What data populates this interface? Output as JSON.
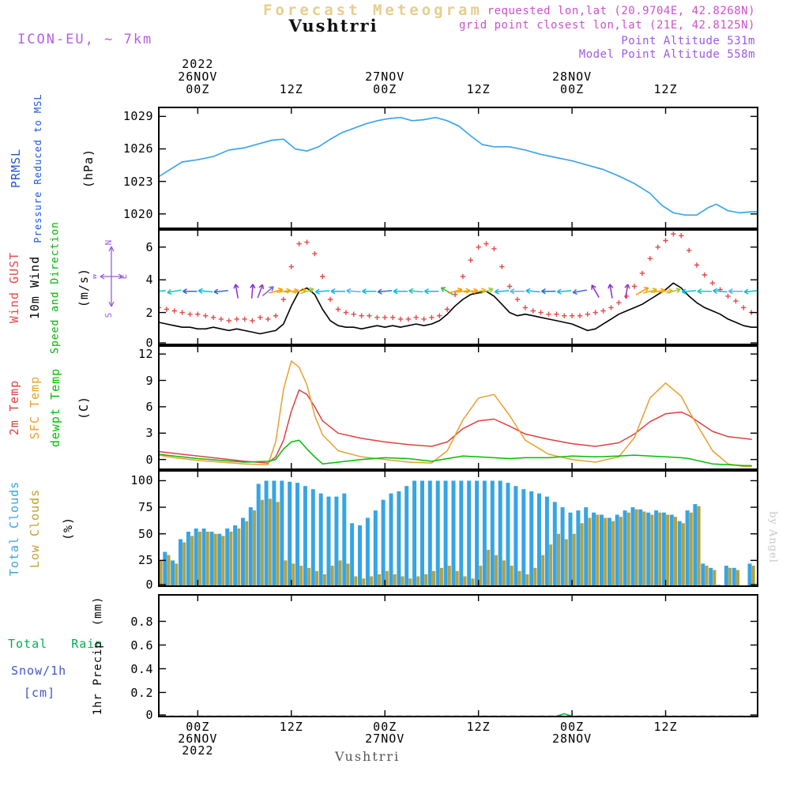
{
  "header": {
    "title": "Forecast Meteogram",
    "station": "Vushtrri",
    "model": "ICON-EU, ~ 7km",
    "requested": "requested lon,lat (20.9704E, 42.8268N)",
    "grid_point": "grid point closest lon,lat (21E, 42.8125N)",
    "point_altitude": "Point Altitude 531m",
    "model_point_altitude": "Model Point Altitude 558m"
  },
  "footer": {
    "station": "Vushtrri"
  },
  "watermark": "by Angel",
  "compass": {
    "n": "N",
    "e": "E",
    "s": "S",
    "w": "W"
  },
  "time_axis": {
    "hours_range": [
      -5.1,
      71.9
    ],
    "ticks": [
      {
        "h": 0,
        "z": "00Z",
        "date": "26NOV",
        "year": "2022"
      },
      {
        "h": 12,
        "z": "12Z"
      },
      {
        "h": 24,
        "z": "00Z",
        "date": "27NOV"
      },
      {
        "h": 36,
        "z": "12Z"
      },
      {
        "h": 48,
        "z": "00Z",
        "date": "28NOV"
      },
      {
        "h": 60,
        "z": "12Z"
      }
    ]
  },
  "panel_labels": {
    "pressure": [
      {
        "t": "PRMSL",
        "c": "#1b57d8"
      },
      {
        "t": "Pressure Reduced to MSL",
        "c": "#1b57d8"
      },
      {
        "t": "(hPa)",
        "c": "#000000"
      }
    ],
    "wind": [
      {
        "t": "Wind GUST",
        "c": "#e84848"
      },
      {
        "t": "10m Wind",
        "c": "#000000"
      },
      {
        "t": "Speed and Direction",
        "c": "#00b000"
      },
      {
        "t": "(m/s)",
        "c": "#000000"
      }
    ],
    "temperature": [
      {
        "t": "2m Temp",
        "c": "#e04040"
      },
      {
        "t": "SFC Temp",
        "c": "#e8a030"
      },
      {
        "t": "dewpt Temp",
        "c": "#00c000"
      },
      {
        "t": "(C)",
        "c": "#000000"
      }
    ],
    "clouds": [
      {
        "t": "Total Clouds",
        "c": "#35a5e5"
      },
      {
        "t": "Low Clouds",
        "c": "#c0a030"
      },
      {
        "t": "(%)",
        "c": "#000000"
      }
    ],
    "precip_side": [
      {
        "t": "Total   Rain",
        "c": "#00b050"
      },
      {
        "t": "Snow/1h",
        "c": "#4055cc"
      },
      {
        "t": "[cm]",
        "c": "#4055cc"
      }
    ],
    "precip_rot": [
      {
        "t": "1hr Precip  (mm)",
        "c": "#000000"
      }
    ]
  },
  "chart_data": [
    {
      "id": "pressure",
      "type": "line",
      "name": "Pressure Reduced to MSL (hPa)",
      "ylim": [
        1018.6,
        1029.9
      ],
      "yticks": [
        1020,
        1023,
        1026,
        1029
      ],
      "series": [
        {
          "name": "PRMSL",
          "color": "#3da5e8",
          "width": 1.7,
          "x": [
            -5.1,
            -4,
            -2,
            0,
            2,
            4,
            6,
            8,
            9.5,
            11,
            12.5,
            14,
            15.5,
            17,
            18.5,
            20,
            21.5,
            23,
            24.5,
            26,
            27.5,
            29,
            30.5,
            32,
            33.5,
            35,
            36.5,
            38,
            40,
            42,
            44,
            46,
            48,
            50,
            52,
            54,
            56,
            58,
            59.5,
            61,
            62.5,
            64,
            65.5,
            66.5,
            68,
            69.5,
            71,
            71.9
          ],
          "y": [
            1023.4,
            1023.9,
            1024.8,
            1025.0,
            1025.3,
            1025.9,
            1026.1,
            1026.5,
            1026.8,
            1026.9,
            1026.0,
            1025.8,
            1026.2,
            1026.9,
            1027.5,
            1027.9,
            1028.3,
            1028.6,
            1028.8,
            1028.9,
            1028.6,
            1028.7,
            1028.9,
            1028.6,
            1028.1,
            1027.2,
            1026.4,
            1026.2,
            1026.2,
            1025.9,
            1025.5,
            1025.2,
            1024.9,
            1024.5,
            1024.1,
            1023.5,
            1022.8,
            1021.9,
            1020.8,
            1020.1,
            1019.9,
            1019.9,
            1020.6,
            1020.9,
            1020.3,
            1020.1,
            1020.2,
            1020.2
          ]
        }
      ]
    },
    {
      "id": "wind",
      "type": "mixed",
      "name": "10m Wind Speed, Gust (m/s) and Direction",
      "ylim": [
        0,
        7.1
      ],
      "yticks": [
        0,
        2,
        4,
        6
      ],
      "gust": {
        "name": "Wind GUST",
        "color": "#e84848",
        "x0": -5,
        "dx": 1,
        "y": [
          2.3,
          2.2,
          2.1,
          2.0,
          1.9,
          1.9,
          1.8,
          1.7,
          1.6,
          1.5,
          1.6,
          1.6,
          1.5,
          1.7,
          1.6,
          1.8,
          2.8,
          4.8,
          6.2,
          6.3,
          5.6,
          4.2,
          2.8,
          2.2,
          2.0,
          1.9,
          1.8,
          1.8,
          1.7,
          1.7,
          1.7,
          1.6,
          1.6,
          1.7,
          1.6,
          1.7,
          1.8,
          2.2,
          3.1,
          4.2,
          5.2,
          6.0,
          6.2,
          5.9,
          4.8,
          3.6,
          2.8,
          2.3,
          2.1,
          2.0,
          1.9,
          1.9,
          1.8,
          1.8,
          1.8,
          1.9,
          2.0,
          2.1,
          2.3,
          2.6,
          3.0,
          3.6,
          4.4,
          5.3,
          6.0,
          6.4,
          6.8,
          6.7,
          5.8,
          4.9,
          4.3,
          3.8,
          3.4,
          3.0,
          2.7,
          2.3,
          2.0,
          1.9
        ]
      },
      "speed": {
        "name": "10m Wind",
        "color": "#000000",
        "x0": -5,
        "dx": 1,
        "y": [
          1.4,
          1.3,
          1.2,
          1.1,
          1.1,
          1.0,
          1.0,
          1.1,
          1.0,
          0.9,
          1.0,
          0.9,
          0.8,
          0.7,
          0.8,
          0.9,
          1.3,
          2.4,
          3.3,
          3.5,
          3.1,
          2.2,
          1.5,
          1.2,
          1.1,
          1.1,
          1.0,
          1.1,
          1.2,
          1.1,
          1.2,
          1.1,
          1.2,
          1.3,
          1.2,
          1.3,
          1.5,
          1.9,
          2.4,
          2.8,
          3.1,
          3.2,
          3.3,
          3.0,
          2.5,
          2.0,
          1.8,
          1.9,
          1.8,
          1.7,
          1.6,
          1.5,
          1.4,
          1.3,
          1.1,
          0.9,
          1.0,
          1.3,
          1.6,
          1.9,
          2.1,
          2.3,
          2.5,
          2.8,
          3.1,
          3.4,
          3.8,
          3.5,
          3.0,
          2.6,
          2.3,
          2.1,
          1.9,
          1.6,
          1.4,
          1.2,
          1.1,
          1.1
        ]
      },
      "barbs": {
        "name": "Wind Direction",
        "y_value": 3.3,
        "items": [
          [
            -5,
            185,
            "#00bfe8"
          ],
          [
            -3,
            190,
            "#20c8a8"
          ],
          [
            -1,
            180,
            "#2e6bd8"
          ],
          [
            1,
            175,
            "#00bfe8"
          ],
          [
            3,
            185,
            "#2e6bd8"
          ],
          [
            5,
            100,
            "#8a2be2"
          ],
          [
            7,
            85,
            "#8a2be2"
          ],
          [
            8,
            70,
            "#9932cc"
          ],
          [
            9,
            40,
            "#7a5fe8"
          ],
          [
            10,
            15,
            "#ff9900"
          ],
          [
            11,
            8,
            "#d4b818"
          ],
          [
            12,
            5,
            "#ff9900"
          ],
          [
            13,
            12,
            "#ffb020"
          ],
          [
            14,
            20,
            "#9acd32"
          ],
          [
            16,
            185,
            "#00bfe8"
          ],
          [
            18,
            180,
            "#00bfe8"
          ],
          [
            20,
            175,
            "#50b8e8"
          ],
          [
            22,
            180,
            "#00bfe8"
          ],
          [
            24,
            185,
            "#2e6bd8"
          ],
          [
            26,
            180,
            "#00bfe8"
          ],
          [
            28,
            175,
            "#20c8a8"
          ],
          [
            30,
            180,
            "#00bfe8"
          ],
          [
            32,
            150,
            "#3cb84a"
          ],
          [
            33,
            15,
            "#ff9900"
          ],
          [
            34,
            8,
            "#d4b818"
          ],
          [
            35,
            5,
            "#ff9900"
          ],
          [
            36,
            12,
            "#ffb020"
          ],
          [
            37,
            20,
            "#9acd32"
          ],
          [
            39,
            185,
            "#00bfe8"
          ],
          [
            41,
            180,
            "#50b8e8"
          ],
          [
            43,
            175,
            "#00bfe8"
          ],
          [
            45,
            180,
            "#2e6bd8"
          ],
          [
            47,
            185,
            "#00bfe8"
          ],
          [
            49,
            190,
            "#4169e1"
          ],
          [
            51,
            120,
            "#8a2be2"
          ],
          [
            53,
            100,
            "#8a2be2"
          ],
          [
            55,
            80,
            "#9932cc"
          ],
          [
            57,
            30,
            "#ff9900"
          ],
          [
            58,
            15,
            "#d4b818"
          ],
          [
            59,
            8,
            "#ff9900"
          ],
          [
            60,
            5,
            "#ffb020"
          ],
          [
            61,
            15,
            "#9acd32"
          ],
          [
            63,
            185,
            "#00bfe8"
          ],
          [
            65,
            180,
            "#20c8a8"
          ],
          [
            67,
            175,
            "#00bfe8"
          ],
          [
            69,
            180,
            "#50b8e8"
          ],
          [
            71,
            185,
            "#00bfe8"
          ]
        ]
      }
    },
    {
      "id": "temperature",
      "type": "line",
      "name": "2m / Surface / Dewpoint Temperature (C)",
      "ylim": [
        -1.2,
        13.0
      ],
      "yticks": [
        0,
        3,
        6,
        9,
        12
      ],
      "series": [
        {
          "name": "2m Temp",
          "color": "#e04040",
          "width": 1.5,
          "x": [
            -5,
            -3,
            0,
            3,
            6,
            9,
            10,
            11,
            12,
            13,
            14,
            15,
            16,
            18,
            21,
            24,
            27,
            30,
            32,
            34,
            36,
            38,
            40,
            42,
            45,
            48,
            51,
            54,
            56,
            58,
            60,
            62,
            63,
            64,
            66,
            68,
            70,
            71
          ],
          "y": [
            0.9,
            0.7,
            0.4,
            0.1,
            -0.2,
            -0.4,
            0.3,
            2.2,
            5.5,
            7.9,
            7.4,
            6.0,
            4.4,
            3.0,
            2.4,
            2.0,
            1.7,
            1.5,
            2.0,
            3.5,
            4.4,
            4.6,
            3.8,
            2.9,
            2.3,
            1.8,
            1.5,
            1.9,
            2.9,
            4.3,
            5.2,
            5.4,
            5.0,
            4.4,
            3.2,
            2.6,
            2.4,
            2.3
          ]
        },
        {
          "name": "SFC Temp",
          "color": "#e8a030",
          "width": 1.5,
          "x": [
            -5,
            -3,
            0,
            3,
            6,
            9,
            10,
            11,
            12,
            13,
            14,
            15,
            16,
            18,
            21,
            24,
            27,
            30,
            32,
            34,
            36,
            38,
            40,
            42,
            45,
            48,
            51,
            54,
            56,
            58,
            60,
            62,
            63,
            64,
            66,
            68,
            70,
            71
          ],
          "y": [
            0.5,
            0.2,
            -0.1,
            -0.3,
            -0.5,
            -0.6,
            2.0,
            8.0,
            11.2,
            10.5,
            8.5,
            5.0,
            2.8,
            1.0,
            0.3,
            0.0,
            -0.3,
            -0.4,
            1.0,
            4.5,
            7.0,
            7.4,
            5.0,
            2.2,
            0.6,
            0.0,
            -0.3,
            0.3,
            2.5,
            7.0,
            8.7,
            7.2,
            5.5,
            4.0,
            1.0,
            -0.5,
            -0.8,
            -0.8
          ]
        },
        {
          "name": "dewpt Temp",
          "color": "#00c000",
          "width": 1.5,
          "x": [
            -5,
            -3,
            0,
            3,
            6,
            9,
            10,
            11,
            12,
            13,
            14,
            15,
            16,
            18,
            21,
            24,
            27,
            30,
            32,
            34,
            36,
            38,
            40,
            42,
            45,
            48,
            51,
            54,
            56,
            58,
            60,
            62,
            63,
            64,
            66,
            68,
            70,
            71
          ],
          "y": [
            0.6,
            0.4,
            0.1,
            -0.1,
            -0.3,
            -0.2,
            0.0,
            1.2,
            2.0,
            2.2,
            1.2,
            0.3,
            -0.5,
            -0.3,
            0.0,
            0.2,
            0.1,
            -0.2,
            0.1,
            0.4,
            0.3,
            0.2,
            0.1,
            0.2,
            0.2,
            0.4,
            0.3,
            0.4,
            0.5,
            0.4,
            0.3,
            0.2,
            0.1,
            -0.1,
            -0.5,
            -0.6,
            -0.7,
            -0.7
          ]
        }
      ]
    },
    {
      "id": "clouds",
      "type": "bar",
      "name": "Total and Low Cloud Cover (%)",
      "ylim": [
        0,
        110
      ],
      "yticks": [
        0,
        25,
        50,
        75,
        100
      ],
      "x0": -5,
      "dx": 1,
      "series": [
        {
          "name": "Total Clouds",
          "color": "#35a5e5",
          "values": [
            30,
            33,
            25,
            45,
            52,
            55,
            55,
            52,
            50,
            55,
            58,
            65,
            75,
            97,
            100,
            100,
            100,
            99,
            98,
            95,
            92,
            88,
            85,
            85,
            88,
            60,
            58,
            65,
            72,
            82,
            88,
            90,
            95,
            100,
            100,
            100,
            100,
            100,
            100,
            100,
            100,
            100,
            100,
            100,
            100,
            98,
            95,
            92,
            90,
            88,
            85,
            80,
            75,
            70,
            72,
            75,
            70,
            68,
            65,
            68,
            72,
            75,
            73,
            70,
            72,
            70,
            68,
            62,
            72,
            78,
            22,
            18,
            2,
            20,
            18,
            1,
            22
          ]
        },
        {
          "name": "Low Clouds",
          "color": "#b5a042",
          "values": [
            25,
            30,
            22,
            42,
            48,
            52,
            52,
            50,
            48,
            52,
            55,
            62,
            72,
            82,
            83,
            80,
            25,
            22,
            20,
            18,
            15,
            12,
            20,
            25,
            22,
            10,
            8,
            10,
            12,
            15,
            12,
            10,
            8,
            10,
            12,
            15,
            18,
            20,
            15,
            10,
            8,
            20,
            35,
            30,
            25,
            20,
            15,
            12,
            18,
            30,
            40,
            50,
            45,
            50,
            60,
            65,
            68,
            65,
            62,
            66,
            70,
            73,
            71,
            68,
            70,
            68,
            66,
            60,
            70,
            76,
            20,
            16,
            1,
            18,
            16,
            0,
            20
          ]
        }
      ]
    },
    {
      "id": "precip",
      "type": "line",
      "name": "1hr Precipitation (mm), Rain and Snow",
      "ylim": [
        -0.01,
        1.03
      ],
      "yticks": [
        0,
        0.2,
        0.4,
        0.6,
        0.8
      ],
      "zero_line_dashed": true,
      "series": [
        {
          "name": "Total Rain",
          "color": "#00b44c",
          "width": 1.5,
          "x": [
            46,
            47,
            48
          ],
          "y": [
            0,
            0.02,
            0
          ]
        },
        {
          "name": "Snow/1h",
          "color": "#4055cc",
          "width": 1.5,
          "x": [
            -5,
            71.9
          ],
          "y": [
            0,
            0
          ]
        }
      ]
    }
  ]
}
